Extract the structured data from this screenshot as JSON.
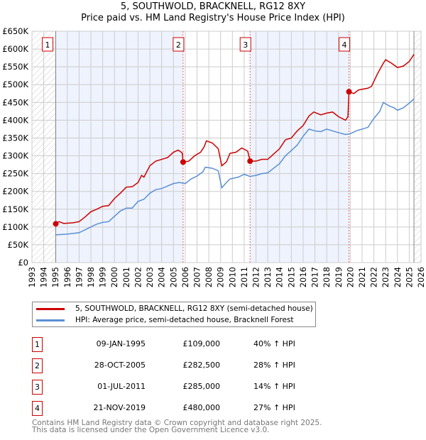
{
  "chart_data": {
    "type": "line",
    "title": "5, SOUTHWOLD, BRACKNELL, RG12 8XY",
    "subtitle": "Price paid vs. HM Land Registry's House Price Index (HPI)",
    "xlim": [
      1993,
      2026
    ],
    "ylim": [
      0,
      650000
    ],
    "grid": true,
    "x_ticks": [
      "1993",
      "1994",
      "1995",
      "1996",
      "1997",
      "1998",
      "1999",
      "2000",
      "2001",
      "2002",
      "2003",
      "2004",
      "2005",
      "2006",
      "2007",
      "2008",
      "2009",
      "2010",
      "2011",
      "2012",
      "2013",
      "2014",
      "2015",
      "2016",
      "2017",
      "2018",
      "2019",
      "2020",
      "2021",
      "2022",
      "2023",
      "2024",
      "2025",
      "2026"
    ],
    "y_ticks": [
      {
        "v": 0,
        "label": "£0"
      },
      {
        "v": 50000,
        "label": "£50K"
      },
      {
        "v": 100000,
        "label": "£100K"
      },
      {
        "v": 150000,
        "label": "£150K"
      },
      {
        "v": 200000,
        "label": "£200K"
      },
      {
        "v": 250000,
        "label": "£250K"
      },
      {
        "v": 300000,
        "label": "£300K"
      },
      {
        "v": 350000,
        "label": "£350K"
      },
      {
        "v": 400000,
        "label": "£400K"
      },
      {
        "v": 450000,
        "label": "£450K"
      },
      {
        "v": 500000,
        "label": "£500K"
      },
      {
        "v": 550000,
        "label": "£550K"
      },
      {
        "v": 600000,
        "label": "£600K"
      },
      {
        "v": 650000,
        "label": "£650K"
      }
    ],
    "shaded_ranges": [
      [
        1995.02,
        2005.82
      ],
      [
        2011.5,
        2019.89
      ]
    ],
    "hatched_ranges": [
      [
        1993,
        1995.02
      ],
      [
        2025.4,
        2026
      ]
    ],
    "series": [
      {
        "name": "5, SOUTHWOLD, BRACKNELL, RG12 8XY (semi-detached house)",
        "color": "#cc0000",
        "points": [
          [
            1995.02,
            109000
          ],
          [
            1995.3,
            115000
          ],
          [
            1995.7,
            110000
          ],
          [
            1996.5,
            112000
          ],
          [
            1997,
            115000
          ],
          [
            1997.5,
            128000
          ],
          [
            1998,
            143000
          ],
          [
            1998.5,
            150000
          ],
          [
            1999,
            158000
          ],
          [
            1999.5,
            160000
          ],
          [
            2000,
            180000
          ],
          [
            2000.5,
            195000
          ],
          [
            2001,
            212000
          ],
          [
            2001.5,
            213000
          ],
          [
            2002,
            225000
          ],
          [
            2002.3,
            245000
          ],
          [
            2002.5,
            240000
          ],
          [
            2003,
            272000
          ],
          [
            2003.5,
            285000
          ],
          [
            2004,
            290000
          ],
          [
            2004.5,
            295000
          ],
          [
            2005,
            310000
          ],
          [
            2005.4,
            316000
          ],
          [
            2005.75,
            308000
          ],
          [
            2005.82,
            282500
          ],
          [
            2006.3,
            285000
          ],
          [
            2006.8,
            300000
          ],
          [
            2007.3,
            310000
          ],
          [
            2007.6,
            325000
          ],
          [
            2007.8,
            342000
          ],
          [
            2008.3,
            336000
          ],
          [
            2008.8,
            320000
          ],
          [
            2009.1,
            272000
          ],
          [
            2009.5,
            283000
          ],
          [
            2009.8,
            307000
          ],
          [
            2010.3,
            310000
          ],
          [
            2010.8,
            322000
          ],
          [
            2011.3,
            313000
          ],
          [
            2011.5,
            285000
          ],
          [
            2012,
            285000
          ],
          [
            2012.5,
            290000
          ],
          [
            2013,
            290000
          ],
          [
            2013.5,
            305000
          ],
          [
            2014,
            320000
          ],
          [
            2014.5,
            345000
          ],
          [
            2015,
            350000
          ],
          [
            2015.5,
            370000
          ],
          [
            2016,
            385000
          ],
          [
            2016.5,
            412000
          ],
          [
            2016.9,
            423000
          ],
          [
            2017.5,
            415000
          ],
          [
            2018,
            420000
          ],
          [
            2018.5,
            423000
          ],
          [
            2019,
            410000
          ],
          [
            2019.6,
            400000
          ],
          [
            2019.8,
            410000
          ],
          [
            2019.89,
            480000
          ],
          [
            2020.3,
            475000
          ],
          [
            2020.7,
            485000
          ],
          [
            2021.5,
            490000
          ],
          [
            2021.8,
            495000
          ],
          [
            2022.3,
            530000
          ],
          [
            2022.8,
            560000
          ],
          [
            2023,
            570000
          ],
          [
            2023.5,
            560000
          ],
          [
            2024,
            548000
          ],
          [
            2024.5,
            552000
          ],
          [
            2025,
            565000
          ],
          [
            2025.4,
            585000
          ]
        ]
      },
      {
        "name": "HPI: Average price, semi-detached house, Bracknell Forest",
        "color": "#5b8fd4",
        "points": [
          [
            1995.02,
            78000
          ],
          [
            1996,
            80000
          ],
          [
            1997,
            84000
          ],
          [
            1997.5,
            92000
          ],
          [
            1998,
            100000
          ],
          [
            1998.5,
            108000
          ],
          [
            1999,
            113000
          ],
          [
            1999.5,
            115000
          ],
          [
            2000,
            130000
          ],
          [
            2000.5,
            145000
          ],
          [
            2001,
            153000
          ],
          [
            2001.5,
            153000
          ],
          [
            2002,
            172000
          ],
          [
            2002.5,
            178000
          ],
          [
            2003,
            195000
          ],
          [
            2003.5,
            205000
          ],
          [
            2004,
            208000
          ],
          [
            2004.5,
            215000
          ],
          [
            2005,
            222000
          ],
          [
            2005.5,
            225000
          ],
          [
            2006,
            222000
          ],
          [
            2006.5,
            235000
          ],
          [
            2007,
            243000
          ],
          [
            2007.5,
            255000
          ],
          [
            2007.7,
            268000
          ],
          [
            2008.3,
            265000
          ],
          [
            2008.8,
            258000
          ],
          [
            2009.1,
            210000
          ],
          [
            2009.5,
            225000
          ],
          [
            2009.8,
            235000
          ],
          [
            2010.5,
            240000
          ],
          [
            2011,
            248000
          ],
          [
            2011.5,
            242000
          ],
          [
            2012,
            245000
          ],
          [
            2012.5,
            250000
          ],
          [
            2013,
            252000
          ],
          [
            2013.5,
            265000
          ],
          [
            2014,
            278000
          ],
          [
            2014.5,
            300000
          ],
          [
            2015,
            315000
          ],
          [
            2015.5,
            330000
          ],
          [
            2016,
            355000
          ],
          [
            2016.5,
            375000
          ],
          [
            2017,
            370000
          ],
          [
            2017.5,
            368000
          ],
          [
            2018,
            375000
          ],
          [
            2018.5,
            370000
          ],
          [
            2019,
            365000
          ],
          [
            2019.6,
            360000
          ],
          [
            2020,
            362000
          ],
          [
            2020.5,
            370000
          ],
          [
            2021,
            375000
          ],
          [
            2021.5,
            380000
          ],
          [
            2022,
            405000
          ],
          [
            2022.5,
            425000
          ],
          [
            2022.8,
            450000
          ],
          [
            2023.3,
            440000
          ],
          [
            2023.7,
            435000
          ],
          [
            2024,
            428000
          ],
          [
            2024.5,
            435000
          ],
          [
            2025,
            448000
          ],
          [
            2025.4,
            460000
          ]
        ]
      }
    ],
    "sales": [
      {
        "label": "1",
        "x": 1995.02,
        "y": 109000
      },
      {
        "label": "2",
        "x": 2005.82,
        "y": 282500
      },
      {
        "label": "3",
        "x": 2011.5,
        "y": 285000
      },
      {
        "label": "4",
        "x": 2019.89,
        "y": 480000
      }
    ]
  },
  "legend": {
    "property": "5, SOUTHWOLD, BRACKNELL, RG12 8XY (semi-detached house)",
    "hpi": "HPI: Average price, semi-detached house, Bracknell Forest"
  },
  "transactions": [
    {
      "num": "1",
      "date": "09-JAN-1995",
      "price": "£109,000",
      "hpi": "40% ↑ HPI"
    },
    {
      "num": "2",
      "date": "28-OCT-2005",
      "price": "£282,500",
      "hpi": "28% ↑ HPI"
    },
    {
      "num": "3",
      "date": "01-JUL-2011",
      "price": "£285,000",
      "hpi": "14% ↑ HPI"
    },
    {
      "num": "4",
      "date": "21-NOV-2019",
      "price": "£480,000",
      "hpi": "27% ↑ HPI"
    }
  ],
  "footer": {
    "line1": "Contains HM Land Registry data © Crown copyright and database right 2025.",
    "line2": "This data is licensed under the Open Government Licence v3.0."
  },
  "colors": {
    "property": "#cc0000",
    "hpi": "#5b8fd4",
    "shade": "#eef3fd"
  }
}
